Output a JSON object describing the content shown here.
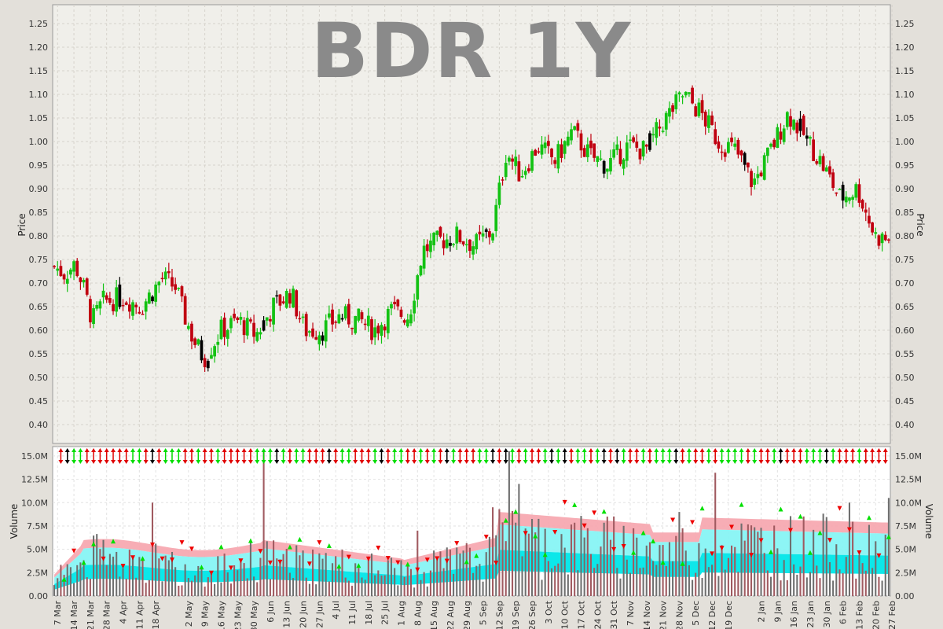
{
  "chart_data": {
    "type": "candlestick",
    "title": "BDR 1Y",
    "price_panel": {
      "ylabel": "Price",
      "ylim": [
        0.36,
        1.29
      ],
      "yticks": [
        "0.40",
        "0.45",
        "0.50",
        "0.55",
        "0.60",
        "0.65",
        "0.70",
        "0.75",
        "0.80",
        "0.85",
        "0.90",
        "0.95",
        "1.00",
        "1.05",
        "1.10",
        "1.15",
        "1.20",
        "1.25"
      ],
      "grid": true,
      "up_color": "#13c213",
      "down_color": "#c00010",
      "flat_color": "#000000",
      "price_path": [
        [
          0,
          0.735
        ],
        [
          3,
          0.72
        ],
        [
          6,
          0.74
        ],
        [
          8,
          0.7
        ],
        [
          11,
          0.62
        ],
        [
          14,
          0.66
        ],
        [
          20,
          0.67
        ],
        [
          25,
          0.65
        ],
        [
          31,
          0.71
        ],
        [
          35,
          0.69
        ],
        [
          37,
          0.64
        ],
        [
          40,
          0.58
        ],
        [
          43,
          0.54
        ],
        [
          48,
          0.6
        ],
        [
          53,
          0.62
        ],
        [
          58,
          0.59
        ],
        [
          63,
          0.65
        ],
        [
          68,
          0.68
        ],
        [
          72,
          0.6
        ],
        [
          77,
          0.6
        ],
        [
          82,
          0.63
        ],
        [
          88,
          0.62
        ],
        [
          92,
          0.6
        ],
        [
          97,
          0.64
        ],
        [
          102,
          0.63
        ],
        [
          106,
          0.77
        ],
        [
          111,
          0.79
        ],
        [
          116,
          0.8
        ],
        [
          121,
          0.78
        ],
        [
          126,
          0.81
        ],
        [
          130,
          0.98
        ],
        [
          134,
          0.93
        ],
        [
          139,
          0.99
        ],
        [
          144,
          0.96
        ],
        [
          149,
          1.02
        ],
        [
          154,
          0.97
        ],
        [
          159,
          0.95
        ],
        [
          165,
          0.99
        ],
        [
          170,
          0.98
        ],
        [
          175,
          1.04
        ],
        [
          181,
          1.1
        ],
        [
          186,
          1.06
        ],
        [
          191,
          1.0
        ],
        [
          196,
          0.98
        ],
        [
          201,
          0.91
        ],
        [
          206,
          0.98
        ],
        [
          211,
          1.06
        ],
        [
          216,
          1.01
        ],
        [
          221,
          0.95
        ],
        [
          226,
          0.88
        ],
        [
          231,
          0.9
        ],
        [
          236,
          0.8
        ],
        [
          240,
          0.79
        ]
      ]
    },
    "volume_panel": {
      "ylabel": "Volume",
      "ylim": [
        0,
        16000000
      ],
      "yticks": [
        "0.00",
        "2.5M",
        "5.0M",
        "7.5M",
        "10.0M",
        "12.5M",
        "15.0M"
      ],
      "spikes": [
        [
          28,
          10000000
        ],
        [
          60,
          15500000
        ],
        [
          104,
          7000000
        ],
        [
          126,
          9500000
        ],
        [
          131,
          15500000
        ],
        [
          134,
          12000000
        ],
        [
          180,
          9000000
        ],
        [
          190,
          13200000
        ],
        [
          229,
          10000000
        ],
        [
          240,
          10500000
        ]
      ],
      "band_colors": [
        "#f7a9b1",
        "#87f4f4",
        "#00e6e8"
      ]
    },
    "x_categories": [
      "7 Mar",
      "14 Mar",
      "21 Mar",
      "28 Mar",
      "4 Apr",
      "11 Apr",
      "18 Apr",
      "2 May",
      "9 May",
      "16 May",
      "23 May",
      "30 May",
      "6 Jun",
      "13 Jun",
      "20 Jun",
      "27 Jun",
      "4 Jul",
      "11 Jul",
      "18 Jul",
      "25 Jul",
      "1 Aug",
      "8 Aug",
      "15 Aug",
      "22 Aug",
      "29 Aug",
      "5 Sep",
      "12 Sep",
      "19 Sep",
      "26 Sep",
      "3 Oct",
      "10 Oct",
      "17 Oct",
      "24 Oct",
      "31 Oct",
      "7 Nov",
      "14 Nov",
      "21 Nov",
      "28 Nov",
      "5 Dec",
      "12 Dec",
      "19 Dec",
      "2 Jan",
      "9 Jan",
      "16 Jan",
      "23 Jan",
      "30 Jan",
      "6 Feb",
      "13 Feb",
      "20 Feb",
      "27 Feb"
    ],
    "x_tick_index": [
      1,
      6,
      11,
      16,
      21,
      26,
      31,
      41,
      46,
      51,
      56,
      61,
      66,
      71,
      76,
      81,
      86,
      91,
      96,
      101,
      106,
      111,
      116,
      121,
      126,
      131,
      136,
      141,
      146,
      151,
      156,
      161,
      166,
      171,
      176,
      181,
      186,
      191,
      196,
      201,
      206,
      216,
      221,
      226,
      231,
      236,
      241,
      246,
      251,
      256
    ]
  }
}
